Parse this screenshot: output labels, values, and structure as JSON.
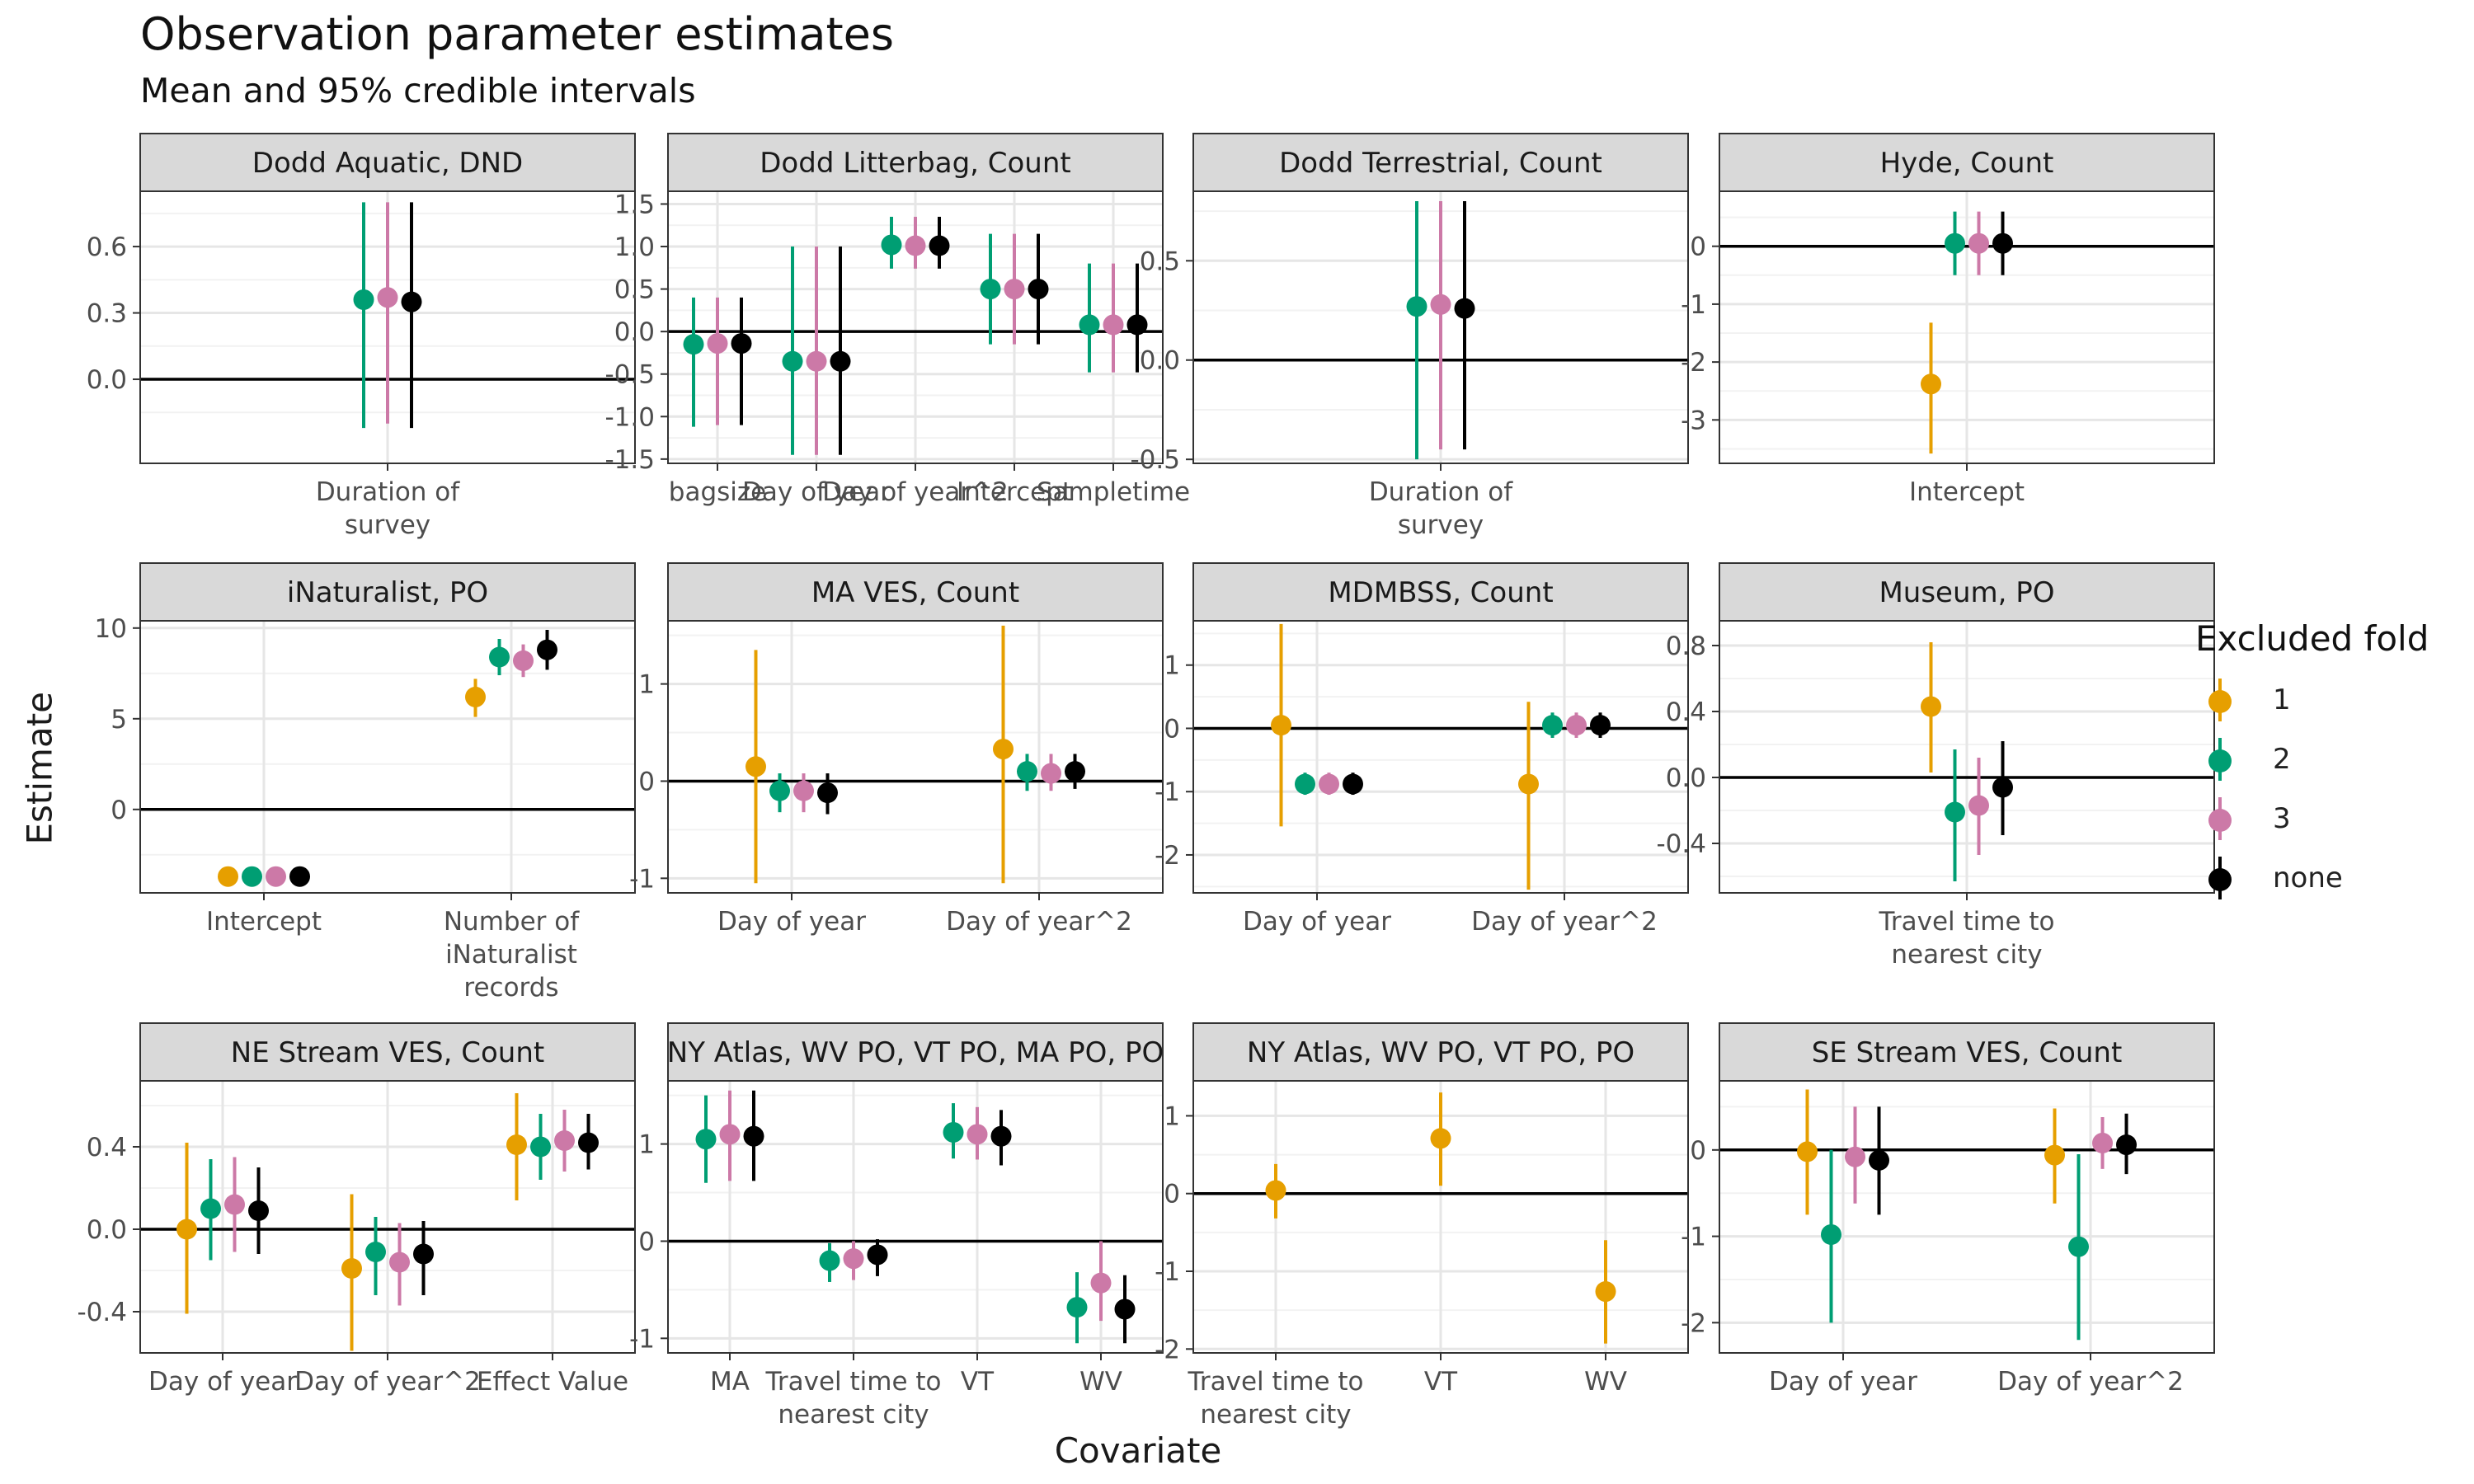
{
  "title": "Observation parameter estimates",
  "subtitle": "Mean and 95% credible intervals",
  "xlabel": "Covariate",
  "ylabel": "Estimate",
  "legend": {
    "title": "Excluded fold",
    "items": [
      {
        "label": "1",
        "color": "#E69F00"
      },
      {
        "label": "2",
        "color": "#009E73"
      },
      {
        "label": "3",
        "color": "#CC79A7"
      },
      {
        "label": "none",
        "color": "#000000"
      }
    ]
  },
  "chart_data": {
    "type": "scatter",
    "style": "pointrange faceted (ggplot2 theme_bw)",
    "facets": [
      {
        "title": "Dodd Aquatic, DND",
        "ylim": [
          -0.38,
          0.85
        ],
        "yticks": [
          "0.0",
          "0.3",
          "0.6"
        ],
        "yticks_v": [
          0,
          0.3,
          0.6
        ],
        "categories": [
          "Duration of\nsurvey"
        ],
        "estimates": [
          {
            "fold": "2",
            "values": [
              [
                0.36,
                -0.22,
                0.8
              ]
            ]
          },
          {
            "fold": "3",
            "values": [
              [
                0.37,
                -0.2,
                0.8
              ]
            ]
          },
          {
            "fold": "none",
            "values": [
              [
                0.35,
                -0.22,
                0.8
              ]
            ]
          }
        ]
      },
      {
        "title": "Dodd Litterbag, Count",
        "ylim": [
          -1.55,
          1.65
        ],
        "yticks": [
          "-1.5",
          "-1.0",
          "-0.5",
          "0.0",
          "0.5",
          "1.0",
          "1.5"
        ],
        "yticks_v": [
          -1.5,
          -1,
          -0.5,
          0,
          0.5,
          1,
          1.5
        ],
        "categories": [
          "bagsize",
          "Day of year",
          "Day of year^2",
          "Intercept",
          "Sampletime"
        ],
        "estimates": [
          {
            "fold": "2",
            "values": [
              [
                -0.15,
                -1.12,
                0.4
              ],
              [
                -0.35,
                -1.45,
                1.0
              ],
              [
                1.02,
                0.74,
                1.35
              ],
              [
                0.5,
                -0.15,
                1.15
              ],
              [
                0.08,
                -0.48,
                0.8
              ]
            ]
          },
          {
            "fold": "3",
            "values": [
              [
                -0.14,
                -1.1,
                0.4
              ],
              [
                -0.35,
                -1.45,
                1.0
              ],
              [
                1.01,
                0.74,
                1.35
              ],
              [
                0.5,
                -0.15,
                1.15
              ],
              [
                0.08,
                -0.48,
                0.8
              ]
            ]
          },
          {
            "fold": "none",
            "values": [
              [
                -0.14,
                -1.1,
                0.4
              ],
              [
                -0.35,
                -1.45,
                1.0
              ],
              [
                1.01,
                0.74,
                1.35
              ],
              [
                0.5,
                -0.15,
                1.15
              ],
              [
                0.08,
                -0.48,
                0.8
              ]
            ]
          }
        ]
      },
      {
        "title": "Dodd Terrestrial, Count",
        "ylim": [
          -0.52,
          0.85
        ],
        "yticks": [
          "-0.5",
          "0.0",
          "0.5"
        ],
        "yticks_v": [
          -0.5,
          0,
          0.5
        ],
        "categories": [
          "Duration of\nsurvey"
        ],
        "estimates": [
          {
            "fold": "2",
            "values": [
              [
                0.27,
                -0.5,
                0.8
              ]
            ]
          },
          {
            "fold": "3",
            "values": [
              [
                0.28,
                -0.45,
                0.8
              ]
            ]
          },
          {
            "fold": "none",
            "values": [
              [
                0.26,
                -0.45,
                0.8
              ]
            ]
          }
        ]
      },
      {
        "title": "Hyde, Count",
        "ylim": [
          -3.75,
          0.95
        ],
        "yticks": [
          "-3",
          "-2",
          "-1",
          "0"
        ],
        "yticks_v": [
          -3,
          -2,
          -1,
          0
        ],
        "categories": [
          "Intercept"
        ],
        "estimates": [
          {
            "fold": "1",
            "values": [
              [
                -2.38,
                -3.58,
                -1.32
              ]
            ]
          },
          {
            "fold": "2",
            "values": [
              [
                0.05,
                -0.5,
                0.6
              ]
            ]
          },
          {
            "fold": "3",
            "values": [
              [
                0.05,
                -0.5,
                0.6
              ]
            ]
          },
          {
            "fold": "none",
            "values": [
              [
                0.05,
                -0.5,
                0.6
              ]
            ]
          }
        ]
      },
      {
        "title": "iNaturalist, PO",
        "ylim": [
          -4.6,
          10.4
        ],
        "yticks": [
          "0",
          "5",
          "10"
        ],
        "yticks_v": [
          0,
          5,
          10
        ],
        "categories": [
          "Intercept",
          "Number of\niNaturalist\nrecords"
        ],
        "estimates": [
          {
            "fold": "1",
            "values": [
              [
                -3.7,
                -3.9,
                -3.5
              ],
              [
                6.2,
                5.1,
                7.2
              ]
            ]
          },
          {
            "fold": "2",
            "values": [
              [
                -3.7,
                -3.9,
                -3.5
              ],
              [
                8.4,
                7.4,
                9.4
              ]
            ]
          },
          {
            "fold": "3",
            "values": [
              [
                -3.7,
                -3.9,
                -3.5
              ],
              [
                8.2,
                7.3,
                9.1
              ]
            ]
          },
          {
            "fold": "none",
            "values": [
              [
                -3.7,
                -3.9,
                -3.5
              ],
              [
                8.8,
                7.7,
                9.9
              ]
            ]
          }
        ]
      },
      {
        "title": "MA VES, Count",
        "ylim": [
          -1.15,
          1.65
        ],
        "yticks": [
          "-1",
          "0",
          "1"
        ],
        "yticks_v": [
          -1,
          0,
          1
        ],
        "categories": [
          "Day of year",
          "Day of year^2"
        ],
        "estimates": [
          {
            "fold": "1",
            "values": [
              [
                0.15,
                -1.05,
                1.35
              ],
              [
                0.33,
                -1.05,
                1.6
              ]
            ]
          },
          {
            "fold": "2",
            "values": [
              [
                -0.1,
                -0.32,
                0.08
              ],
              [
                0.1,
                -0.1,
                0.28
              ]
            ]
          },
          {
            "fold": "3",
            "values": [
              [
                -0.1,
                -0.32,
                0.08
              ],
              [
                0.08,
                -0.1,
                0.28
              ]
            ]
          },
          {
            "fold": "none",
            "values": [
              [
                -0.12,
                -0.34,
                0.08
              ],
              [
                0.1,
                -0.08,
                0.28
              ]
            ]
          }
        ]
      },
      {
        "title": "MDMBSS, Count",
        "ylim": [
          -2.6,
          1.7
        ],
        "yticks": [
          "-2",
          "-1",
          "0",
          "1"
        ],
        "yticks_v": [
          -2,
          -1,
          0,
          1
        ],
        "categories": [
          "Day of year",
          "Day of year^2"
        ],
        "estimates": [
          {
            "fold": "1",
            "values": [
              [
                0.05,
                -1.55,
                1.65
              ],
              [
                -0.88,
                -2.55,
                0.42
              ]
            ]
          },
          {
            "fold": "2",
            "values": [
              [
                -0.88,
                -1.05,
                -0.7
              ],
              [
                0.05,
                -0.15,
                0.25
              ]
            ]
          },
          {
            "fold": "3",
            "values": [
              [
                -0.88,
                -1.05,
                -0.7
              ],
              [
                0.05,
                -0.15,
                0.25
              ]
            ]
          },
          {
            "fold": "none",
            "values": [
              [
                -0.88,
                -1.05,
                -0.7
              ],
              [
                0.05,
                -0.15,
                0.25
              ]
            ]
          }
        ]
      },
      {
        "title": "Museum, PO",
        "ylim": [
          -0.7,
          0.95
        ],
        "yticks": [
          "-0.4",
          "0.0",
          "0.4",
          "0.8"
        ],
        "yticks_v": [
          -0.4,
          0,
          0.4,
          0.8
        ],
        "categories": [
          "Travel time to\nnearest city"
        ],
        "estimates": [
          {
            "fold": "1",
            "values": [
              [
                0.43,
                0.03,
                0.82
              ]
            ]
          },
          {
            "fold": "2",
            "values": [
              [
                -0.21,
                -0.63,
                0.17
              ]
            ]
          },
          {
            "fold": "3",
            "values": [
              [
                -0.17,
                -0.47,
                0.12
              ]
            ]
          },
          {
            "fold": "none",
            "values": [
              [
                -0.06,
                -0.35,
                0.22
              ]
            ]
          }
        ]
      },
      {
        "title": "NE Stream VES, Count",
        "ylim": [
          -0.6,
          0.72
        ],
        "yticks": [
          "-0.4",
          "0.0",
          "0.4"
        ],
        "yticks_v": [
          -0.4,
          0,
          0.4
        ],
        "categories": [
          "Day of year",
          "Day of year^2",
          "Effect Value"
        ],
        "estimates": [
          {
            "fold": "1",
            "values": [
              [
                0.0,
                -0.41,
                0.42
              ],
              [
                -0.19,
                -0.59,
                0.17
              ],
              [
                0.41,
                0.14,
                0.66
              ]
            ]
          },
          {
            "fold": "2",
            "values": [
              [
                0.1,
                -0.15,
                0.34
              ],
              [
                -0.11,
                -0.32,
                0.06
              ],
              [
                0.4,
                0.24,
                0.56
              ]
            ]
          },
          {
            "fold": "3",
            "values": [
              [
                0.12,
                -0.11,
                0.35
              ],
              [
                -0.16,
                -0.37,
                0.03
              ],
              [
                0.43,
                0.28,
                0.58
              ]
            ]
          },
          {
            "fold": "none",
            "values": [
              [
                0.09,
                -0.12,
                0.3
              ],
              [
                -0.12,
                -0.32,
                0.04
              ],
              [
                0.42,
                0.29,
                0.56
              ]
            ]
          }
        ]
      },
      {
        "title": "NY Atlas, WV PO, VT PO, MA PO, PO",
        "ylim": [
          -1.15,
          1.65
        ],
        "yticks": [
          "-1",
          "0",
          "1"
        ],
        "yticks_v": [
          -1,
          0,
          1
        ],
        "categories": [
          "MA",
          "Travel time to\nnearest city",
          "VT",
          "WV"
        ],
        "estimates": [
          {
            "fold": "2",
            "values": [
              [
                1.05,
                0.6,
                1.5
              ],
              [
                -0.2,
                -0.42,
                -0.02
              ],
              [
                1.12,
                0.85,
                1.42
              ],
              [
                -0.68,
                -1.05,
                -0.32
              ]
            ]
          },
          {
            "fold": "3",
            "values": [
              [
                1.1,
                0.62,
                1.55
              ],
              [
                -0.18,
                -0.4,
                0.0
              ],
              [
                1.1,
                0.84,
                1.38
              ],
              [
                -0.43,
                -0.82,
                0.0
              ]
            ]
          },
          {
            "fold": "none",
            "values": [
              [
                1.08,
                0.62,
                1.55
              ],
              [
                -0.14,
                -0.36,
                0.02
              ],
              [
                1.08,
                0.78,
                1.35
              ],
              [
                -0.7,
                -1.05,
                -0.35
              ]
            ]
          }
        ]
      },
      {
        "title": "NY Atlas, WV PO, VT PO, PO",
        "ylim": [
          -2.05,
          1.45
        ],
        "yticks": [
          "-2",
          "-1",
          "0",
          "1"
        ],
        "yticks_v": [
          -2,
          -1,
          0,
          1
        ],
        "categories": [
          "Travel time to\nnearest city",
          "VT",
          "WV"
        ],
        "estimates": [
          {
            "fold": "1",
            "values": [
              [
                0.04,
                -0.32,
                0.38
              ],
              [
                0.71,
                0.1,
                1.3
              ],
              [
                -1.26,
                -1.93,
                -0.6
              ]
            ]
          }
        ]
      },
      {
        "title": "SE Stream VES, Count",
        "ylim": [
          -2.35,
          0.8
        ],
        "yticks": [
          "-2",
          "-1",
          "0"
        ],
        "yticks_v": [
          -2,
          -1,
          0
        ],
        "categories": [
          "Day of year",
          "Day of year^2"
        ],
        "estimates": [
          {
            "fold": "1",
            "values": [
              [
                -0.02,
                -0.75,
                0.7
              ],
              [
                -0.06,
                -0.62,
                0.48
              ]
            ]
          },
          {
            "fold": "2",
            "values": [
              [
                -0.98,
                -2.0,
                0.0
              ],
              [
                -1.12,
                -2.2,
                -0.05
              ]
            ]
          },
          {
            "fold": "3",
            "values": [
              [
                -0.08,
                -0.62,
                0.5
              ],
              [
                0.08,
                -0.22,
                0.38
              ]
            ]
          },
          {
            "fold": "none",
            "values": [
              [
                -0.12,
                -0.75,
                0.5
              ],
              [
                0.06,
                -0.28,
                0.42
              ]
            ]
          }
        ]
      }
    ]
  }
}
